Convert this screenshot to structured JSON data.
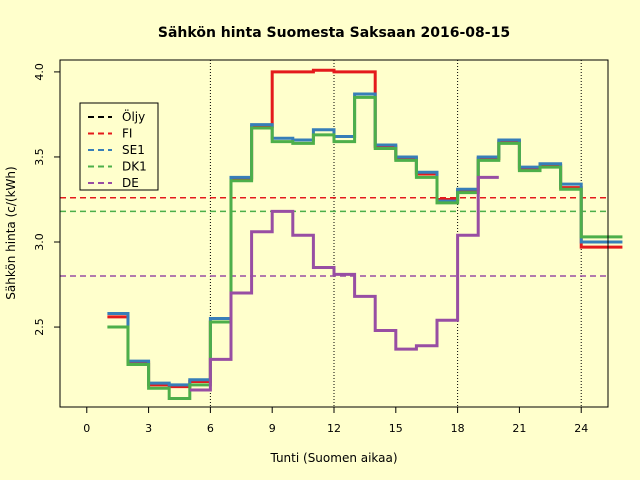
{
  "chart_data": {
    "type": "line",
    "title": "Sähkön hinta Suomesta Saksaan 2016-08-15",
    "xlabel": "Tunti (Suomen aikaa)",
    "ylabel": "Sähkön hinta (c/(kWh)",
    "xlim": [
      -1.3,
      25.3
    ],
    "ylim": [
      2.03,
      4.07
    ],
    "x_ticks": [
      0,
      3,
      6,
      9,
      12,
      15,
      18,
      21,
      24
    ],
    "y_ticks": [
      2.5,
      3.0,
      3.5,
      4.0
    ],
    "y_tick_labels": [
      "2.5",
      "3.0",
      "3.5",
      "4.0"
    ],
    "vertical_gridlines": [
      6,
      12,
      18,
      24
    ],
    "legend_position": "top-left",
    "hours": [
      1,
      2,
      3,
      4,
      5,
      6,
      7,
      8,
      9,
      10,
      11,
      12,
      13,
      14,
      15,
      16,
      17,
      18,
      19,
      20,
      21,
      22,
      23,
      24,
      25
    ],
    "series": [
      {
        "name": "Öljy",
        "color": "#000000",
        "values": []
      },
      {
        "name": "FI",
        "color": "#e41a1c",
        "values": [
          2.56,
          2.29,
          2.16,
          2.15,
          2.18,
          2.53,
          3.37,
          3.68,
          4.0,
          4.0,
          4.01,
          4.0,
          4.0,
          3.56,
          3.49,
          3.4,
          3.25,
          3.3,
          3.49,
          3.59,
          3.43,
          3.45,
          3.32,
          2.97,
          2.97
        ]
      },
      {
        "name": "SE1",
        "color": "#377eb8",
        "values": [
          2.58,
          2.3,
          2.17,
          2.16,
          2.19,
          2.55,
          3.38,
          3.69,
          3.61,
          3.6,
          3.66,
          3.62,
          3.87,
          3.57,
          3.5,
          3.41,
          3.24,
          3.31,
          3.5,
          3.6,
          3.44,
          3.46,
          3.34,
          3.0,
          3.0
        ]
      },
      {
        "name": "DK1",
        "color": "#4daf4a",
        "values": [
          2.5,
          2.28,
          2.14,
          2.08,
          2.16,
          2.53,
          3.36,
          3.67,
          3.59,
          3.58,
          3.63,
          3.59,
          3.85,
          3.55,
          3.48,
          3.38,
          3.23,
          3.29,
          3.48,
          3.58,
          3.42,
          3.44,
          3.31,
          3.03,
          3.03
        ]
      },
      {
        "name": "DE",
        "color": "#984ea3",
        "values": [
          null,
          null,
          null,
          null,
          2.13,
          2.31,
          2.7,
          3.06,
          3.18,
          3.04,
          2.85,
          2.81,
          2.68,
          2.48,
          2.37,
          2.39,
          2.54,
          3.04,
          3.38,
          null,
          null,
          null,
          null,
          null,
          null
        ]
      }
    ],
    "horizontal_reference_lines": [
      {
        "series": "FI",
        "value": 3.26,
        "color": "#e41a1c"
      },
      {
        "series": "DK1",
        "value": 3.18,
        "color": "#4daf4a"
      },
      {
        "series": "DE",
        "value": 2.8,
        "color": "#984ea3"
      }
    ]
  }
}
